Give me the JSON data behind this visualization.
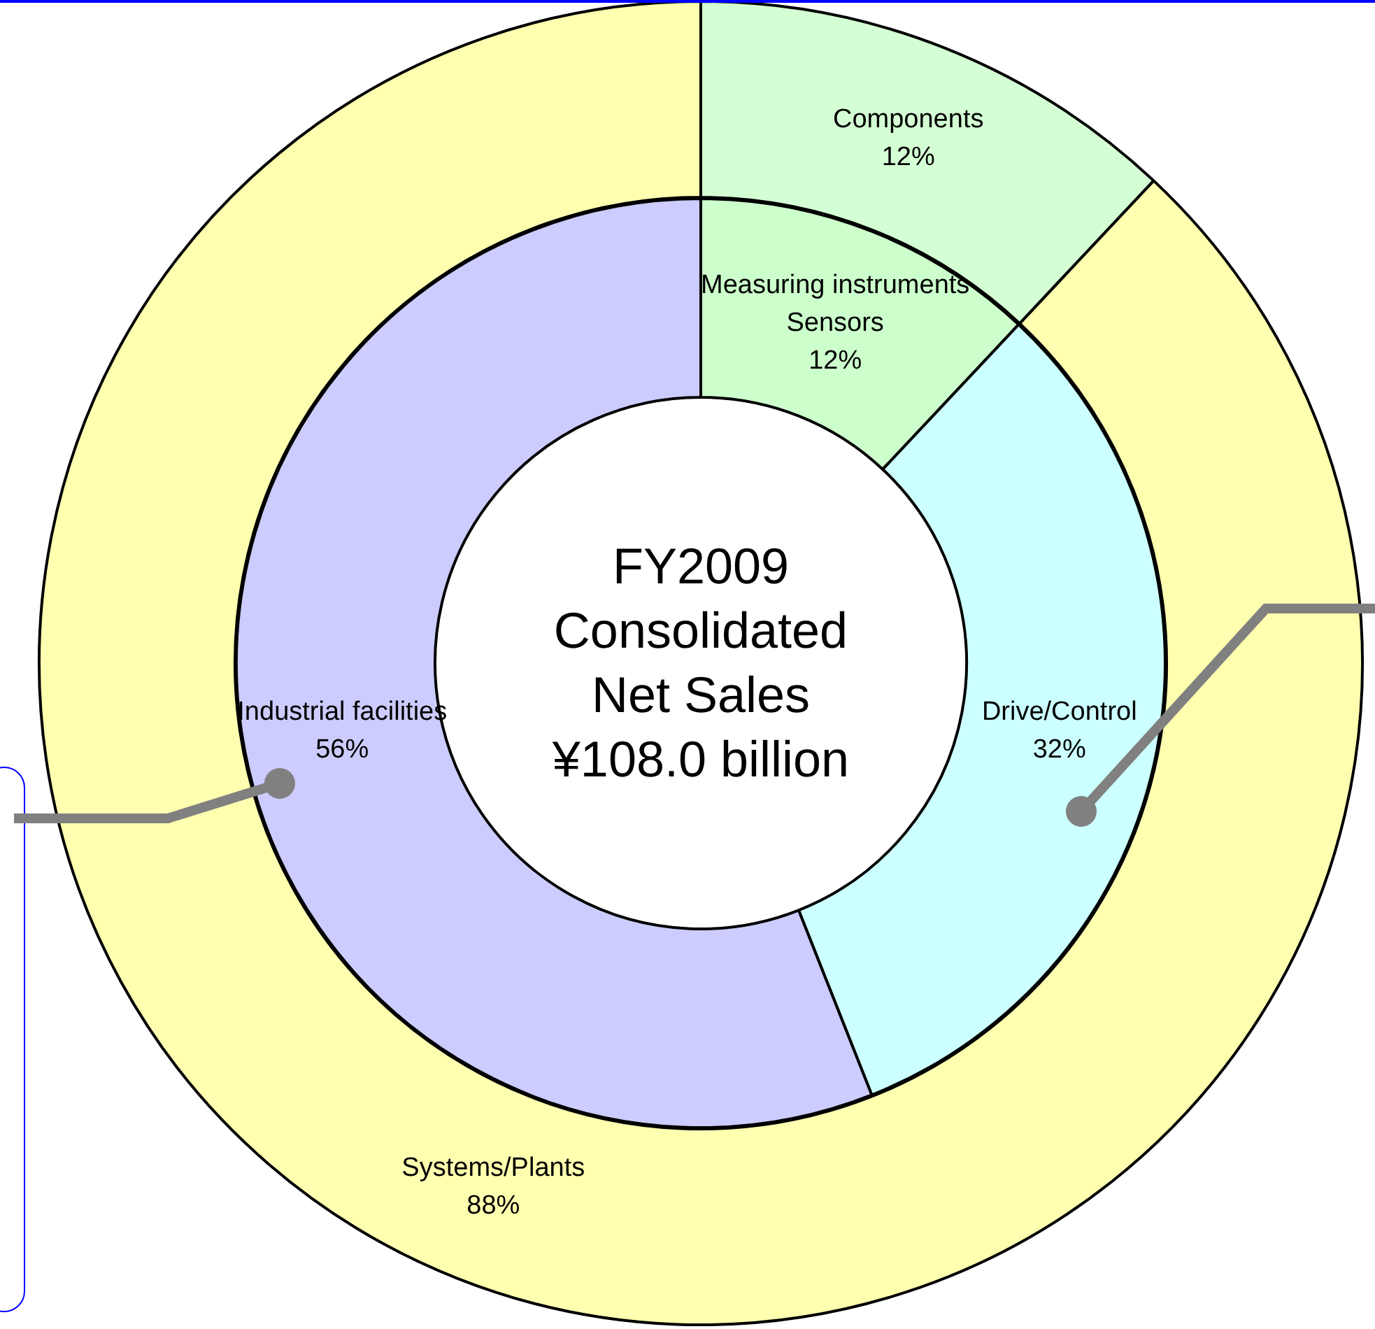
{
  "chart_data": [
    {
      "type": "donut",
      "categories": [
        "Components",
        "Systems/Plants"
      ],
      "values": [
        12,
        88
      ],
      "colors": [
        "#d4ffd4",
        "#ffffb0"
      ],
      "value_labels": [
        "12%",
        "88%"
      ],
      "legend": false
    },
    {
      "type": "donut",
      "title": "FY2009 Consolidated Net Sales ¥108.0 billion",
      "categories": [
        "Measuring instruments Sensors",
        "Drive/Control",
        "Industrial facilities"
      ],
      "values": [
        12,
        32,
        56
      ],
      "colors": [
        "#ccffcc",
        "#ccffff",
        "#ccccff"
      ],
      "value_labels": [
        "12%",
        "32%",
        "56%"
      ],
      "legend": false
    }
  ]
}
